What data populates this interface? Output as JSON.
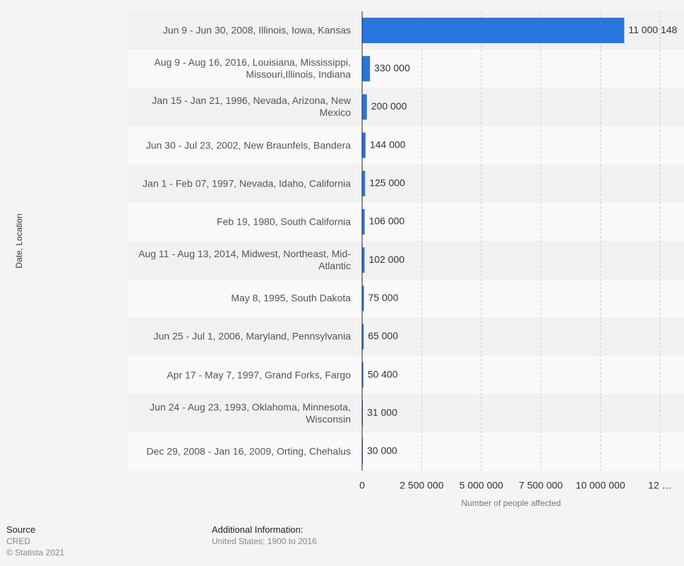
{
  "chart_data": {
    "type": "bar",
    "orientation": "horizontal",
    "categories": [
      "Jun 9 - Jun 30, 2008, Illinois, Iowa, Kansas",
      "Aug 9 - Aug 16, 2016, Louisiana, Mississippi, Missouri,Illinois, Indiana",
      "Jan 15 - Jan 21, 1996, Nevada, Arizona, New Mexico",
      "Jun 30 - Jul 23, 2002, New Braunfels, Bandera",
      "Jan 1 - Feb 07, 1997, Nevada, Idaho, California",
      "Feb 19, 1980, South California",
      "Aug 11 - Aug 13, 2014, Midwest, Northeast, Mid-Atlantic",
      "May 8, 1995, South Dakota",
      "Jun 25 - Jul 1, 2006, Maryland, Pennsylvania",
      "Apr 17 - May 7, 1997, Grand Forks, Fargo",
      "Jun 24 - Aug 23, 1993, Oklahoma, Minnesota, Wisconsin",
      "Dec 29, 2008 - Jan 16, 2009, Orting, Chehalus"
    ],
    "values": [
      11000148,
      330000,
      200000,
      144000,
      125000,
      106000,
      102000,
      75000,
      65000,
      50400,
      31000,
      30000
    ],
    "value_labels": [
      "11 000 148",
      "330 000",
      "200 000",
      "144 000",
      "125 000",
      "106 000",
      "102 000",
      "75 000",
      "65 000",
      "50 400",
      "31 000",
      "30 000"
    ],
    "color": "#2876dd",
    "xlabel": "Number of people affected",
    "ylabel": "Date, Location",
    "xlim": [
      0,
      12500000
    ],
    "xticks": [
      0,
      {
        "value": 2500000,
        "label": "2 500 000"
      },
      {
        "value": 5000000,
        "label": "5 000 000"
      },
      {
        "value": 7500000,
        "label": "7 500 000"
      },
      {
        "value": 10000000,
        "label": "10 000 000"
      },
      {
        "value": 12500000,
        "label": "12 …"
      }
    ],
    "grid": true
  },
  "source": {
    "heading": "Source",
    "name": "CRED",
    "copyright": "© Statista 2021"
  },
  "additional_info": {
    "heading": "Additional Information:",
    "text": "United States; 1900 to 2016"
  }
}
